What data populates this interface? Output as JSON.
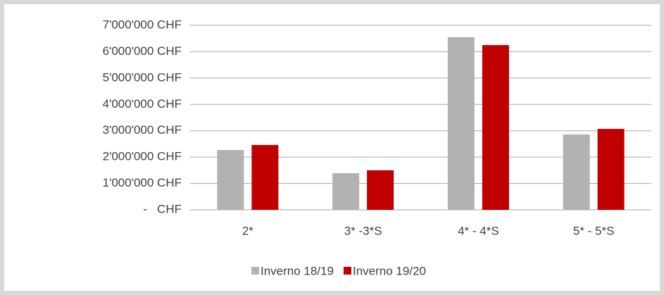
{
  "chart_data": {
    "type": "bar",
    "categories": [
      "2*",
      "3* -3*S",
      "4* - 4*S",
      "5* - 5*S"
    ],
    "series": [
      {
        "name": "Inverno 18/19",
        "color": "#b2b2b2",
        "values": [
          2270000,
          1390000,
          6550000,
          2860000
        ]
      },
      {
        "name": "Inverno 19/20",
        "color": "#c00000",
        "values": [
          2460000,
          1500000,
          6250000,
          3070000
        ]
      }
    ],
    "ylim": [
      0,
      7000000
    ],
    "yticks": [
      {
        "value": 0,
        "label": "-   CHF"
      },
      {
        "value": 1000000,
        "label": "1'000'000 CHF"
      },
      {
        "value": 2000000,
        "label": "2'000'000 CHF"
      },
      {
        "value": 3000000,
        "label": "3'000'000 CHF"
      },
      {
        "value": 4000000,
        "label": "4'000'000 CHF"
      },
      {
        "value": 5000000,
        "label": "5'000'000 CHF"
      },
      {
        "value": 6000000,
        "label": "6'000'000 CHF"
      },
      {
        "value": 7000000,
        "label": "7'000'000 CHF"
      }
    ],
    "grid": true,
    "legend": "bottom"
  }
}
